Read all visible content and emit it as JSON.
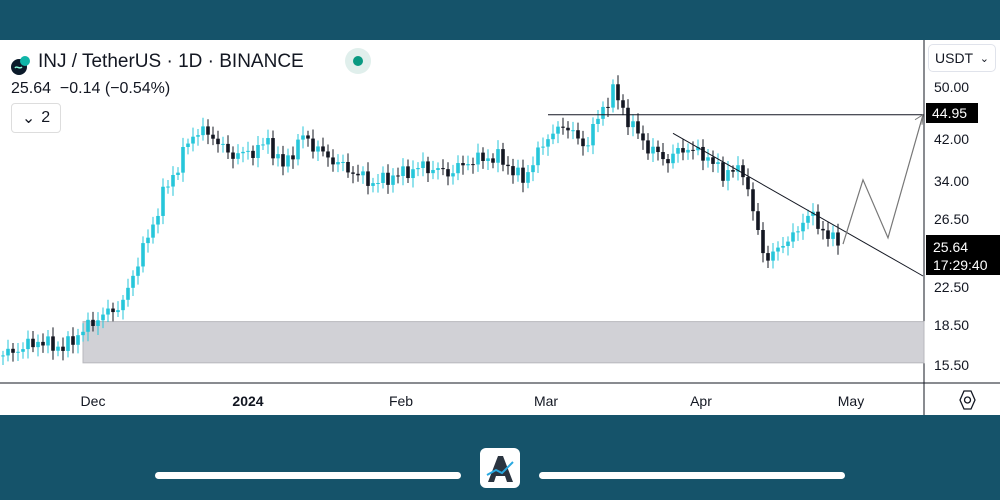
{
  "header": {
    "symbol": "INJ / TetherUS · 1D · BINANCE",
    "price_line": "25.64  −0.14 (−0.54%)",
    "indicators_count": "2",
    "market_status_color": "#089981"
  },
  "currency": {
    "label": "USDT"
  },
  "settings_icon": "hexagon-gear-icon",
  "colors": {
    "frame": "#15536a",
    "up": "#26c6da",
    "down": "#131722",
    "zone": "#d1d1d6"
  },
  "chart_data": {
    "type": "candlestick",
    "scale": "log",
    "y_ticks": [
      "50.00",
      "42.00",
      "34.00",
      "26.50",
      "22.50",
      "18.50",
      "15.50"
    ],
    "x_ticks": [
      "Dec",
      "2024",
      "Feb",
      "Mar",
      "Apr",
      "May"
    ],
    "last_price": "25.64",
    "countdown": "17:29:40",
    "level_label": "44.95",
    "close_path": [
      [
        "2023-11-13",
        16
      ],
      [
        "2023-11-20",
        17
      ],
      [
        "2023-11-25",
        16.5
      ],
      [
        "2023-12-01",
        18.5
      ],
      [
        "2023-12-07",
        20
      ],
      [
        "2023-12-10",
        24
      ],
      [
        "2023-12-13",
        28
      ],
      [
        "2023-12-15",
        32
      ],
      [
        "2023-12-18",
        36
      ],
      [
        "2023-12-20",
        40
      ],
      [
        "2023-12-22",
        42
      ],
      [
        "2023-12-25",
        41
      ],
      [
        "2023-12-28",
        38
      ],
      [
        "2024-01-01",
        38
      ],
      [
        "2024-01-05",
        40
      ],
      [
        "2024-01-08",
        36
      ],
      [
        "2024-01-12",
        41
      ],
      [
        "2024-01-16",
        38
      ],
      [
        "2024-01-20",
        36
      ],
      [
        "2024-01-26",
        33.5
      ],
      [
        "2024-02-01",
        35
      ],
      [
        "2024-02-05",
        36
      ],
      [
        "2024-02-10",
        35
      ],
      [
        "2024-02-15",
        37
      ],
      [
        "2024-02-20",
        37.5
      ],
      [
        "2024-02-25",
        34
      ],
      [
        "2024-03-01",
        41
      ],
      [
        "2024-03-05",
        43
      ],
      [
        "2024-03-08",
        39
      ],
      [
        "2024-03-12",
        46
      ],
      [
        "2024-03-14",
        50
      ],
      [
        "2024-03-17",
        44
      ],
      [
        "2024-03-21",
        39
      ],
      [
        "2024-03-25",
        37
      ],
      [
        "2024-03-28",
        39
      ],
      [
        "2024-04-01",
        38
      ],
      [
        "2024-04-05",
        35
      ],
      [
        "2024-04-09",
        35.5
      ],
      [
        "2024-04-12",
        27
      ],
      [
        "2024-04-14",
        24
      ],
      [
        "2024-04-17",
        26
      ],
      [
        "2024-04-19",
        26.5
      ],
      [
        "2024-04-22",
        29.5
      ],
      [
        "2024-04-24",
        28
      ],
      [
        "2024-04-28",
        25.64
      ]
    ],
    "demand_zone": {
      "from": "2023-11-29",
      "low": 15.5,
      "high": 18.5
    },
    "resistance": {
      "from": "2024-03-01",
      "price": 44.95
    },
    "trendline": [
      [
        "2024-03-26",
        41.5
      ],
      [
        "2024-05-15",
        22.5
      ]
    ],
    "projection": [
      [
        "2024-04-29",
        25.8
      ],
      [
        "2024-05-03",
        34
      ],
      [
        "2024-05-08",
        26.5
      ],
      [
        "2024-05-15",
        44.95
      ]
    ]
  }
}
